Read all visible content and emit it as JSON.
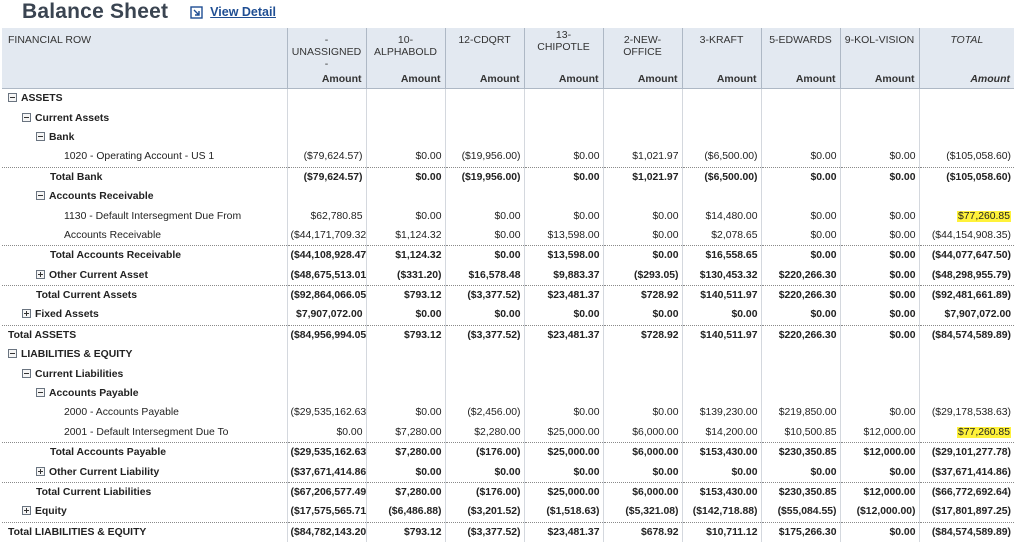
{
  "header": {
    "title": "Balance Sheet",
    "view_detail_label": "View Detail"
  },
  "columns": {
    "first": "FINANCIAL ROW",
    "subsidiaries": [
      "- UNASSIGNED -",
      "10-ALPHABOLD",
      "12-CDQRT",
      "13-\nCHIPOTLE",
      "2-NEW-OFFICE",
      "3-KRAFT",
      "5-EDWARDS",
      "9-KOL-VISION"
    ],
    "total": "TOTAL",
    "amount_label": "Amount"
  },
  "rows": [
    {
      "label": "ASSETS",
      "indent": 0,
      "toggle": "minus",
      "bold": true,
      "total": false,
      "values": [
        "",
        "",
        "",
        "",
        "",
        "",
        "",
        ""
      ],
      "total_value": ""
    },
    {
      "label": "Current Assets",
      "indent": 1,
      "toggle": "minus",
      "bold": true,
      "total": false,
      "values": [
        "",
        "",
        "",
        "",
        "",
        "",
        "",
        ""
      ],
      "total_value": ""
    },
    {
      "label": "Bank",
      "indent": 2,
      "toggle": "minus",
      "bold": true,
      "total": false,
      "values": [
        "",
        "",
        "",
        "",
        "",
        "",
        "",
        ""
      ],
      "total_value": ""
    },
    {
      "label": "1020 - Operating Account - US 1",
      "indent": 4,
      "toggle": "",
      "bold": false,
      "total": false,
      "values": [
        "($79,624.57)",
        "$0.00",
        "($19,956.00)",
        "$0.00",
        "$1,021.97",
        "($6,500.00)",
        "$0.00",
        "$0.00"
      ],
      "total_value": "($105,058.60)"
    },
    {
      "label": "Total Bank",
      "indent": 3,
      "toggle": "",
      "bold": true,
      "total": true,
      "values": [
        "($79,624.57)",
        "$0.00",
        "($19,956.00)",
        "$0.00",
        "$1,021.97",
        "($6,500.00)",
        "$0.00",
        "$0.00"
      ],
      "total_value": "($105,058.60)"
    },
    {
      "label": "Accounts Receivable",
      "indent": 2,
      "toggle": "minus",
      "bold": true,
      "total": false,
      "values": [
        "",
        "",
        "",
        "",
        "",
        "",
        "",
        ""
      ],
      "total_value": ""
    },
    {
      "label": "1130 - Default Intersegment Due From",
      "indent": 4,
      "toggle": "",
      "bold": false,
      "total": false,
      "values": [
        "$62,780.85",
        "$0.00",
        "$0.00",
        "$0.00",
        "$0.00",
        "$14,480.00",
        "$0.00",
        "$0.00"
      ],
      "total_value": "$77,260.85",
      "highlight": true
    },
    {
      "label": "Accounts Receivable",
      "indent": 4,
      "toggle": "",
      "bold": false,
      "total": false,
      "values": [
        "($44,171,709.32)",
        "$1,124.32",
        "$0.00",
        "$13,598.00",
        "$0.00",
        "$2,078.65",
        "$0.00",
        "$0.00"
      ],
      "total_value": "($44,154,908.35)"
    },
    {
      "label": "Total Accounts Receivable",
      "indent": 3,
      "toggle": "",
      "bold": true,
      "total": true,
      "values": [
        "($44,108,928.47)",
        "$1,124.32",
        "$0.00",
        "$13,598.00",
        "$0.00",
        "$16,558.65",
        "$0.00",
        "$0.00"
      ],
      "total_value": "($44,077,647.50)"
    },
    {
      "label": "Other Current Asset",
      "indent": 2,
      "toggle": "plus",
      "bold": true,
      "total": false,
      "values": [
        "($48,675,513.01)",
        "($331.20)",
        "$16,578.48",
        "$9,883.37",
        "($293.05)",
        "$130,453.32",
        "$220,266.30",
        "$0.00"
      ],
      "total_value": "($48,298,955.79)"
    },
    {
      "label": "Total Current Assets",
      "indent": 2,
      "toggle": "",
      "bold": true,
      "total": true,
      "values": [
        "($92,864,066.05)",
        "$793.12",
        "($3,377.52)",
        "$23,481.37",
        "$728.92",
        "$140,511.97",
        "$220,266.30",
        "$0.00"
      ],
      "total_value": "($92,481,661.89)"
    },
    {
      "label": "Fixed Assets",
      "indent": 1,
      "toggle": "plus",
      "bold": true,
      "total": false,
      "values": [
        "$7,907,072.00",
        "$0.00",
        "$0.00",
        "$0.00",
        "$0.00",
        "$0.00",
        "$0.00",
        "$0.00"
      ],
      "total_value": "$7,907,072.00"
    },
    {
      "label": "Total ASSETS",
      "indent": 0,
      "toggle": "",
      "bold": true,
      "total": true,
      "values": [
        "($84,956,994.05)",
        "$793.12",
        "($3,377.52)",
        "$23,481.37",
        "$728.92",
        "$140,511.97",
        "$220,266.30",
        "$0.00"
      ],
      "total_value": "($84,574,589.89)"
    },
    {
      "label": "LIABILITIES & EQUITY",
      "indent": 0,
      "toggle": "minus",
      "bold": true,
      "total": false,
      "values": [
        "",
        "",
        "",
        "",
        "",
        "",
        "",
        ""
      ],
      "total_value": ""
    },
    {
      "label": "Current Liabilities",
      "indent": 1,
      "toggle": "minus",
      "bold": true,
      "total": false,
      "values": [
        "",
        "",
        "",
        "",
        "",
        "",
        "",
        ""
      ],
      "total_value": ""
    },
    {
      "label": "Accounts Payable",
      "indent": 2,
      "toggle": "minus",
      "bold": true,
      "total": false,
      "values": [
        "",
        "",
        "",
        "",
        "",
        "",
        "",
        ""
      ],
      "total_value": ""
    },
    {
      "label": "2000 - Accounts Payable",
      "indent": 4,
      "toggle": "",
      "bold": false,
      "total": false,
      "values": [
        "($29,535,162.63)",
        "$0.00",
        "($2,456.00)",
        "$0.00",
        "$0.00",
        "$139,230.00",
        "$219,850.00",
        "$0.00"
      ],
      "total_value": "($29,178,538.63)"
    },
    {
      "label": "2001 - Default Intersegment Due To",
      "indent": 4,
      "toggle": "",
      "bold": false,
      "total": false,
      "values": [
        "$0.00",
        "$7,280.00",
        "$2,280.00",
        "$25,000.00",
        "$6,000.00",
        "$14,200.00",
        "$10,500.85",
        "$12,000.00"
      ],
      "total_value": "$77,260.85",
      "highlight": true
    },
    {
      "label": "Total Accounts Payable",
      "indent": 3,
      "toggle": "",
      "bold": true,
      "total": true,
      "values": [
        "($29,535,162.63)",
        "$7,280.00",
        "($176.00)",
        "$25,000.00",
        "$6,000.00",
        "$153,430.00",
        "$230,350.85",
        "$12,000.00"
      ],
      "total_value": "($29,101,277.78)"
    },
    {
      "label": "Other Current Liability",
      "indent": 2,
      "toggle": "plus",
      "bold": true,
      "total": false,
      "values": [
        "($37,671,414.86)",
        "$0.00",
        "$0.00",
        "$0.00",
        "$0.00",
        "$0.00",
        "$0.00",
        "$0.00"
      ],
      "total_value": "($37,671,414.86)"
    },
    {
      "label": "Total Current Liabilities",
      "indent": 2,
      "toggle": "",
      "bold": true,
      "total": true,
      "values": [
        "($67,206,577.49)",
        "$7,280.00",
        "($176.00)",
        "$25,000.00",
        "$6,000.00",
        "$153,430.00",
        "$230,350.85",
        "$12,000.00"
      ],
      "total_value": "($66,772,692.64)"
    },
    {
      "label": "Equity",
      "indent": 1,
      "toggle": "plus",
      "bold": true,
      "total": false,
      "values": [
        "($17,575,565.71)",
        "($6,486.88)",
        "($3,201.52)",
        "($1,518.63)",
        "($5,321.08)",
        "($142,718.88)",
        "($55,084.55)",
        "($12,000.00)"
      ],
      "total_value": "($17,801,897.25)"
    },
    {
      "label": "Total LIABILITIES & EQUITY",
      "indent": 0,
      "toggle": "",
      "bold": true,
      "total": true,
      "values": [
        "($84,782,143.20)",
        "$793.12",
        "($3,377.52)",
        "$23,481.37",
        "$678.92",
        "$10,711.12",
        "$175,266.30",
        "$0.00"
      ],
      "total_value": "($84,574,589.89)"
    }
  ],
  "colors": {
    "header_bg": "#e3e9f1",
    "link": "#1f4e93",
    "highlight": "#fff23a"
  }
}
